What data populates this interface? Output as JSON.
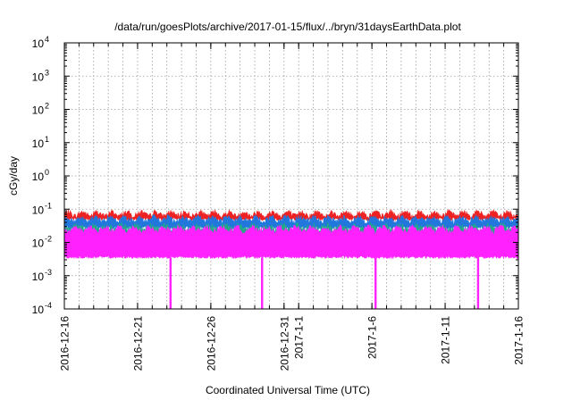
{
  "chart_data": {
    "type": "area",
    "title": "/data/run/goesPlots/archive/2017-01-15/flux/../bryn/31daysEarthData.plot",
    "xlabel": "Coordinated Universal Time (UTC)",
    "ylabel": "cGy/day",
    "yscale": "log",
    "ylim": [
      0.0001,
      10000
    ],
    "xlim": [
      "2016-12-16",
      "2017-01-16"
    ],
    "grid": true,
    "y_ticks": [
      {
        "base": "10",
        "exp": "-4",
        "value": 0.0001
      },
      {
        "base": "10",
        "exp": "-3",
        "value": 0.001
      },
      {
        "base": "10",
        "exp": "-2",
        "value": 0.01
      },
      {
        "base": "10",
        "exp": "-1",
        "value": 0.1
      },
      {
        "base": "10",
        "exp": "0",
        "value": 1
      },
      {
        "base": "10",
        "exp": "1",
        "value": 10
      },
      {
        "base": "10",
        "exp": "2",
        "value": 100
      },
      {
        "base": "10",
        "exp": "3",
        "value": 1000
      },
      {
        "base": "10",
        "exp": "4",
        "value": 10000
      }
    ],
    "x_ticks": [
      {
        "label": "2016-12-16",
        "date": "2016-12-16"
      },
      {
        "label": "2016-12-21",
        "date": "2016-12-21"
      },
      {
        "label": "2016-12-26",
        "date": "2016-12-26"
      },
      {
        "label": "2016-12-31",
        "date": "2016-12-31"
      },
      {
        "label": "2017-1-1",
        "date": "2017-01-01"
      },
      {
        "label": "2017-1-6",
        "date": "2017-01-06"
      },
      {
        "label": "2017-1-11",
        "date": "2017-01-11"
      },
      {
        "label": "2017-1-16",
        "date": "2017-01-16"
      }
    ],
    "series": [
      {
        "color": "#ee2222",
        "typical": 0.06,
        "low": 0.045,
        "high": 0.085
      },
      {
        "color": "#2277dd",
        "typical": 0.04,
        "low": 0.025,
        "high": 0.06
      },
      {
        "color": "#22aa88",
        "typical": 0.022,
        "low": 0.013,
        "high": 0.035
      },
      {
        "color": "#ff22ff",
        "typical": 0.02,
        "low": 0.0033,
        "high": 0.03
      }
    ],
    "dropouts": [
      {
        "date": "2016-12-23T06:00",
        "value": 0.0001
      },
      {
        "date": "2016-12-29T12:00",
        "value": 0.0001
      },
      {
        "date": "2017-01-06T06:00",
        "value": 0.0001
      },
      {
        "date": "2017-01-13T06:00",
        "value": 0.0001
      }
    ]
  }
}
